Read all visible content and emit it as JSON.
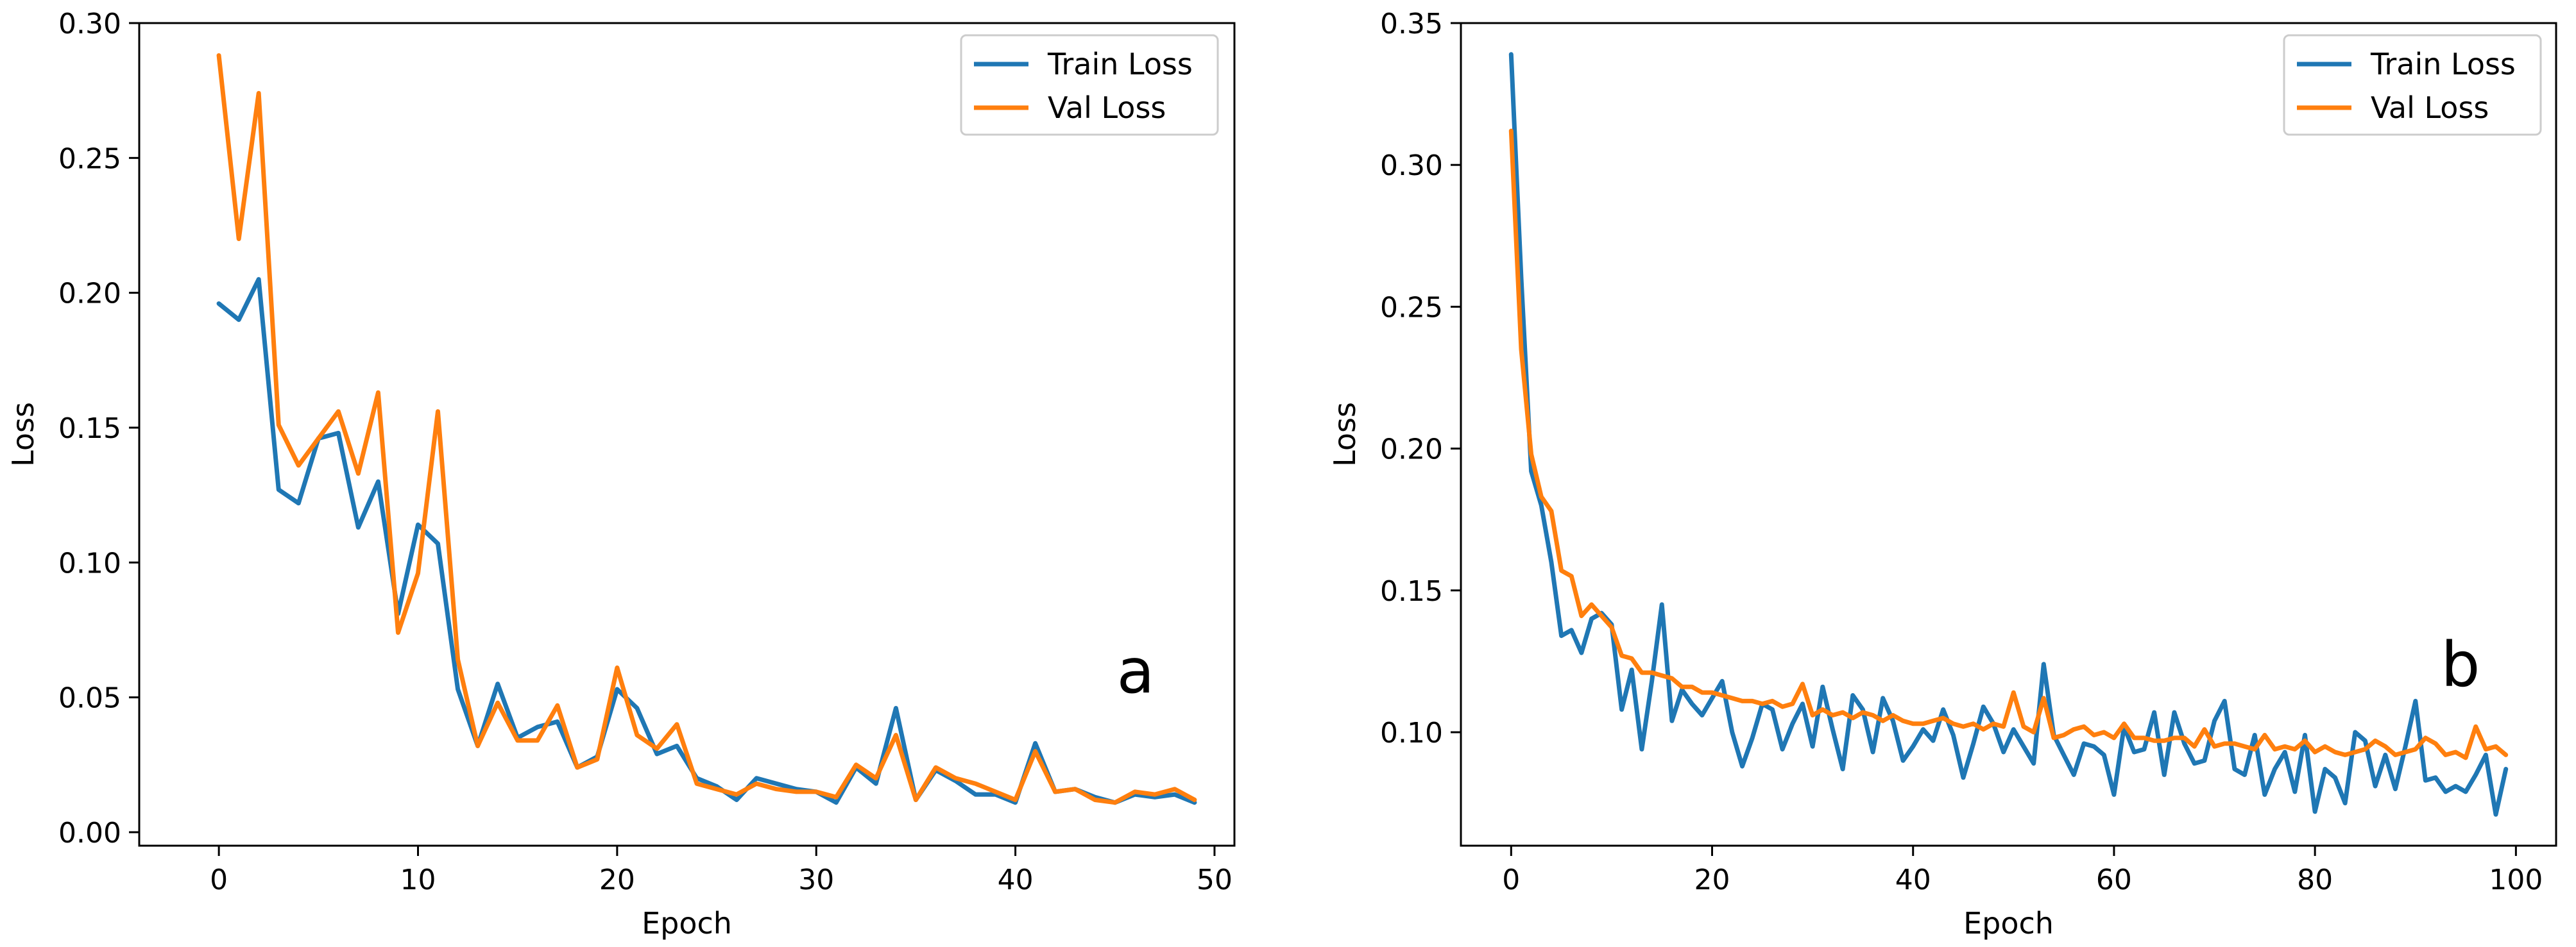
{
  "chart_data": [
    {
      "type": "line",
      "panel_label": "a",
      "title": "",
      "xlabel": "Epoch",
      "ylabel": "Loss",
      "xlim": [
        -4,
        51
      ],
      "ylim": [
        -0.005,
        0.3
      ],
      "xticks": [
        0,
        10,
        20,
        30,
        40,
        50
      ],
      "xtick_labels": [
        "0",
        "10",
        "20",
        "30",
        "40",
        "50"
      ],
      "yticks": [
        0.0,
        0.05,
        0.1,
        0.15,
        0.2,
        0.25,
        0.3
      ],
      "ytick_labels": [
        "0.00",
        "0.05",
        "0.10",
        "0.15",
        "0.20",
        "0.25",
        "0.30"
      ],
      "grid": false,
      "legend_position": "top-right",
      "x": [
        0,
        1,
        2,
        3,
        4,
        5,
        6,
        7,
        8,
        9,
        10,
        11,
        12,
        13,
        14,
        15,
        16,
        17,
        18,
        19,
        20,
        21,
        22,
        23,
        24,
        25,
        26,
        27,
        28,
        29,
        30,
        31,
        32,
        33,
        34,
        35,
        36,
        37,
        38,
        39,
        40,
        41,
        42,
        43,
        44,
        45,
        46,
        47,
        48,
        49
      ],
      "series": [
        {
          "name": "Train Loss",
          "color": "#1f77b4",
          "values": [
            0.196,
            0.19,
            0.205,
            0.127,
            0.122,
            0.146,
            0.148,
            0.113,
            0.13,
            0.081,
            0.114,
            0.107,
            0.053,
            0.032,
            0.055,
            0.035,
            0.039,
            0.041,
            0.024,
            0.028,
            0.053,
            0.046,
            0.029,
            0.032,
            0.02,
            0.017,
            0.012,
            0.02,
            0.018,
            0.016,
            0.015,
            0.011,
            0.024,
            0.018,
            0.046,
            0.012,
            0.023,
            0.019,
            0.014,
            0.014,
            0.011,
            0.033,
            0.015,
            0.016,
            0.013,
            0.011,
            0.014,
            0.013,
            0.014,
            0.011
          ]
        },
        {
          "name": "Val Loss",
          "color": "#ff7f0e",
          "values": [
            0.288,
            0.22,
            0.274,
            0.151,
            0.136,
            0.146,
            0.156,
            0.133,
            0.163,
            0.074,
            0.096,
            0.156,
            0.064,
            0.032,
            0.048,
            0.034,
            0.034,
            0.047,
            0.024,
            0.027,
            0.061,
            0.036,
            0.031,
            0.04,
            0.018,
            0.016,
            0.014,
            0.018,
            0.016,
            0.015,
            0.015,
            0.013,
            0.025,
            0.02,
            0.036,
            0.012,
            0.024,
            0.02,
            0.018,
            0.015,
            0.012,
            0.03,
            0.015,
            0.016,
            0.012,
            0.011,
            0.015,
            0.014,
            0.016,
            0.012
          ]
        }
      ]
    },
    {
      "type": "line",
      "panel_label": "b",
      "title": "",
      "xlabel": "Epoch",
      "ylabel": "Loss",
      "xlim": [
        -5,
        104
      ],
      "ylim": [
        0.06,
        0.35
      ],
      "xticks": [
        0,
        20,
        40,
        60,
        80,
        100
      ],
      "xtick_labels": [
        "0",
        "20",
        "40",
        "60",
        "80",
        "100"
      ],
      "yticks": [
        0.1,
        0.15,
        0.2,
        0.25,
        0.3,
        0.35
      ],
      "ytick_labels": [
        "0.10",
        "0.15",
        "0.20",
        "0.25",
        "0.30",
        "0.35"
      ],
      "grid": false,
      "legend_position": "top-right",
      "x": [
        0,
        1,
        2,
        3,
        4,
        5,
        6,
        7,
        8,
        9,
        10,
        11,
        12,
        13,
        14,
        15,
        16,
        17,
        18,
        19,
        20,
        21,
        22,
        23,
        24,
        25,
        26,
        27,
        28,
        29,
        30,
        31,
        32,
        33,
        34,
        35,
        36,
        37,
        38,
        39,
        40,
        41,
        42,
        43,
        44,
        45,
        46,
        47,
        48,
        49,
        50,
        51,
        52,
        53,
        54,
        55,
        56,
        57,
        58,
        59,
        60,
        61,
        62,
        63,
        64,
        65,
        66,
        67,
        68,
        69,
        70,
        71,
        72,
        73,
        74,
        75,
        76,
        77,
        78,
        79,
        80,
        81,
        82,
        83,
        84,
        85,
        86,
        87,
        88,
        89,
        90,
        91,
        92,
        93,
        94,
        95,
        96,
        97,
        98,
        99
      ],
      "series": [
        {
          "name": "Train Loss",
          "color": "#1f77b4",
          "values": [
            0.339,
            0.26,
            0.192,
            0.18,
            0.16,
            0.134,
            0.136,
            0.128,
            0.14,
            0.142,
            0.138,
            0.108,
            0.122,
            0.094,
            0.118,
            0.145,
            0.104,
            0.115,
            0.11,
            0.106,
            0.112,
            0.118,
            0.1,
            0.088,
            0.098,
            0.11,
            0.108,
            0.094,
            0.103,
            0.11,
            0.095,
            0.116,
            0.101,
            0.087,
            0.113,
            0.108,
            0.093,
            0.112,
            0.104,
            0.09,
            0.095,
            0.101,
            0.097,
            0.108,
            0.099,
            0.084,
            0.096,
            0.109,
            0.103,
            0.093,
            0.101,
            0.095,
            0.089,
            0.124,
            0.099,
            0.092,
            0.085,
            0.096,
            0.095,
            0.092,
            0.078,
            0.102,
            0.093,
            0.094,
            0.107,
            0.085,
            0.107,
            0.096,
            0.089,
            0.09,
            0.104,
            0.111,
            0.087,
            0.085,
            0.099,
            0.078,
            0.087,
            0.093,
            0.079,
            0.099,
            0.072,
            0.087,
            0.084,
            0.075,
            0.1,
            0.097,
            0.081,
            0.092,
            0.08,
            0.095,
            0.111,
            0.083,
            0.084,
            0.079,
            0.081,
            0.079,
            0.085,
            0.092,
            0.071,
            0.087
          ]
        },
        {
          "name": "Val Loss",
          "color": "#ff7f0e",
          "values": [
            0.312,
            0.235,
            0.198,
            0.183,
            0.178,
            0.157,
            0.155,
            0.141,
            0.145,
            0.141,
            0.137,
            0.127,
            0.126,
            0.121,
            0.121,
            0.12,
            0.119,
            0.116,
            0.116,
            0.114,
            0.114,
            0.113,
            0.112,
            0.111,
            0.111,
            0.11,
            0.111,
            0.109,
            0.11,
            0.117,
            0.106,
            0.108,
            0.106,
            0.107,
            0.105,
            0.107,
            0.106,
            0.104,
            0.106,
            0.104,
            0.103,
            0.103,
            0.104,
            0.105,
            0.103,
            0.102,
            0.103,
            0.101,
            0.103,
            0.102,
            0.114,
            0.102,
            0.1,
            0.112,
            0.098,
            0.099,
            0.101,
            0.102,
            0.099,
            0.1,
            0.098,
            0.103,
            0.098,
            0.098,
            0.097,
            0.097,
            0.098,
            0.098,
            0.095,
            0.101,
            0.095,
            0.096,
            0.096,
            0.095,
            0.094,
            0.099,
            0.094,
            0.095,
            0.094,
            0.097,
            0.093,
            0.095,
            0.093,
            0.092,
            0.093,
            0.094,
            0.097,
            0.095,
            0.092,
            0.093,
            0.094,
            0.098,
            0.096,
            0.092,
            0.093,
            0.091,
            0.102,
            0.094,
            0.095,
            0.092
          ]
        }
      ]
    }
  ]
}
